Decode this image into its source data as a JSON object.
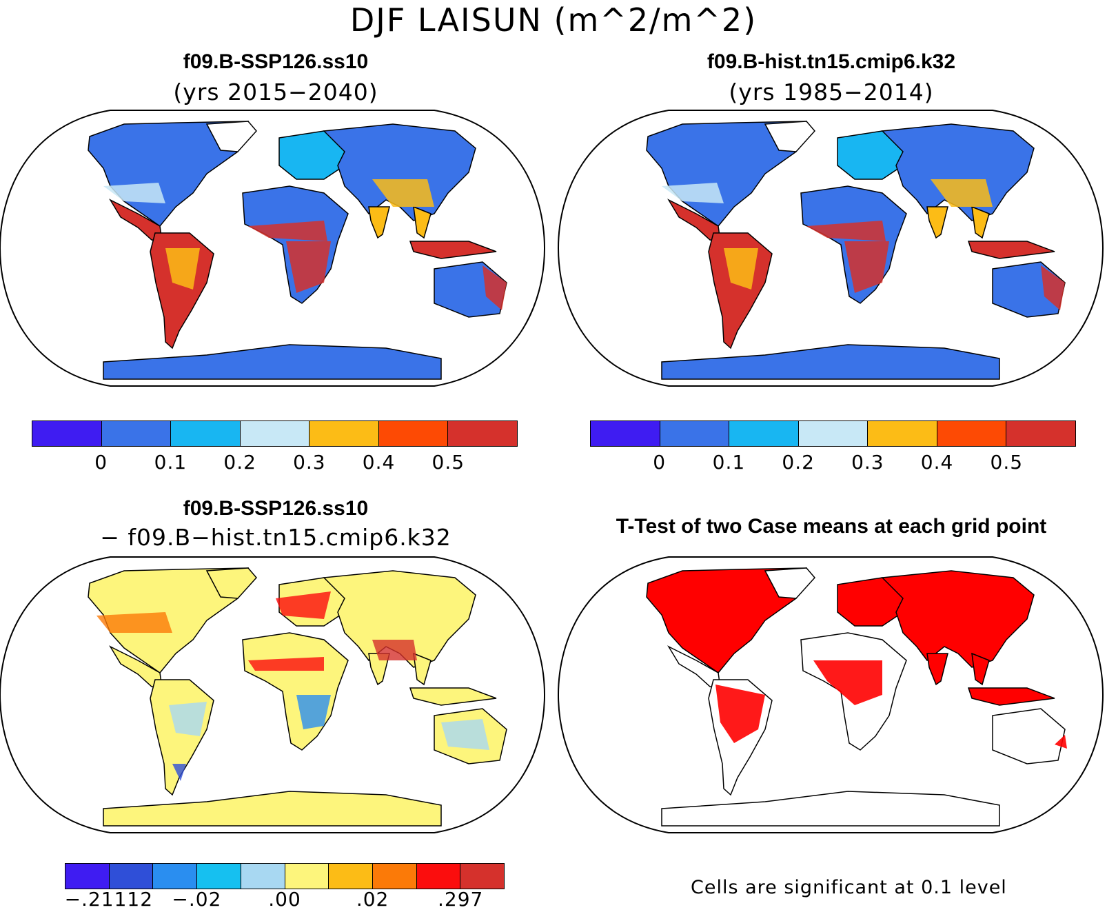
{
  "title": "DJF LAISUN (m^2/m^2)",
  "panels": [
    {
      "id": "case1",
      "title": "f09.B-SSP126.ss10",
      "subtitle": "(yrs 2015−2040)",
      "colorbar": {
        "colors": [
          "#3f1cf2",
          "#3a73e8",
          "#18b6f2",
          "#c8e8f6",
          "#fcbc16",
          "#fd4a04",
          "#d5312c"
        ],
        "labels": [
          "0",
          "0.1",
          "0.2",
          "0.3",
          "0.4",
          "0.5"
        ]
      }
    },
    {
      "id": "case2",
      "title": "f09.B-hist.tn15.cmip6.k32",
      "subtitle": "(yrs 1985−2014)",
      "colorbar": {
        "colors": [
          "#3f1cf2",
          "#3a73e8",
          "#18b6f2",
          "#c8e8f6",
          "#fcbc16",
          "#fd4a04",
          "#d5312c"
        ],
        "labels": [
          "0",
          "0.1",
          "0.2",
          "0.3",
          "0.4",
          "0.5"
        ]
      }
    },
    {
      "id": "diff",
      "title": "f09.B-SSP126.ss10",
      "subtitle": "− f09.B−hist.tn15.cmip6.k32",
      "colorbar": {
        "colors": [
          "#3f1cf2",
          "#2f4fd8",
          "#2a8ef0",
          "#16c0f0",
          "#a8d8f2",
          "#fdf57c",
          "#fcbc16",
          "#fb7a08",
          "#fb0d0d",
          "#d5312c"
        ],
        "labels": [
          "−.21112",
          "−.02",
          ".00",
          ".02",
          ".297"
        ]
      }
    },
    {
      "id": "ttest",
      "title": "T-Test of two Case means at each grid point",
      "note": "Cells are significant at 0.1 level",
      "sig_color": "#ff0000"
    }
  ]
}
